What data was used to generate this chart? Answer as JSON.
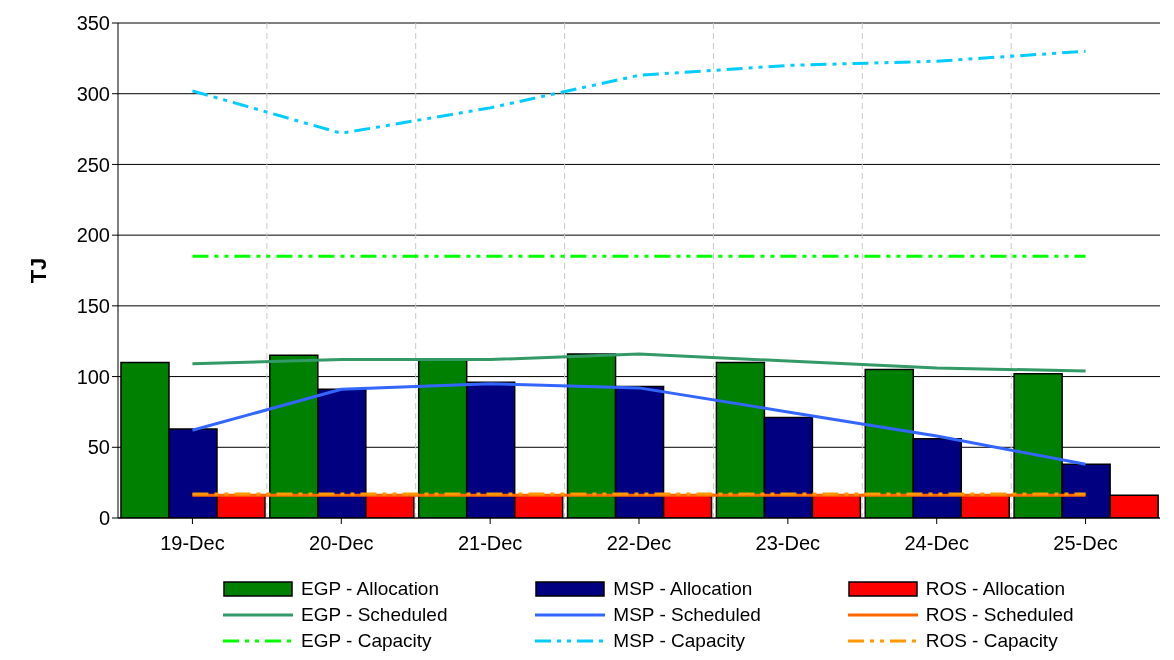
{
  "chart_data": {
    "type": "bar",
    "ylabel": "TJ",
    "categories": [
      "19-Dec",
      "20-Dec",
      "21-Dec",
      "22-Dec",
      "23-Dec",
      "24-Dec",
      "25-Dec"
    ],
    "ylim": [
      0,
      350
    ],
    "yticks": [
      0,
      50,
      100,
      150,
      200,
      250,
      300,
      350
    ],
    "grid": true,
    "legend": "bottom",
    "series": [
      {
        "name": "EGP - Allocation",
        "color": "#008000",
        "values": [
          110,
          115,
          112,
          116,
          110,
          105,
          102
        ]
      },
      {
        "name": "MSP - Allocation",
        "color": "#000080",
        "values": [
          63,
          91,
          96,
          93,
          71,
          56,
          38
        ]
      },
      {
        "name": "ROS - Allocation",
        "color": "#ff0000",
        "values": [
          16,
          16,
          16,
          16,
          16,
          16,
          16
        ]
      },
      {
        "name": "EGP - Scheduled",
        "type": "line",
        "color": "#339966",
        "line_style": "solid",
        "values": [
          109,
          112,
          112,
          116,
          111,
          106,
          104
        ]
      },
      {
        "name": "MSP - Scheduled",
        "type": "line",
        "color": "#3366ff",
        "line_style": "solid",
        "values": [
          62,
          91,
          95,
          92,
          75,
          58,
          38
        ]
      },
      {
        "name": "ROS - Scheduled",
        "type": "line",
        "color": "#ff6600",
        "line_style": "solid",
        "values": [
          16,
          16,
          16,
          16,
          16,
          16,
          16
        ]
      },
      {
        "name": "EGP - Capacity",
        "type": "line",
        "color": "#00ff00",
        "line_style": "dashed",
        "values": [
          185,
          185,
          185,
          185,
          185,
          185,
          185
        ]
      },
      {
        "name": "MSP - Capacity",
        "type": "line",
        "color": "#00ccff",
        "line_style": "dashed",
        "values": [
          302,
          272,
          290,
          313,
          320,
          323,
          330
        ]
      },
      {
        "name": "ROS - Capacity",
        "type": "line",
        "color": "#ff9900",
        "line_style": "dashed",
        "values": [
          17,
          17,
          17,
          17,
          17,
          17,
          17
        ]
      }
    ]
  }
}
